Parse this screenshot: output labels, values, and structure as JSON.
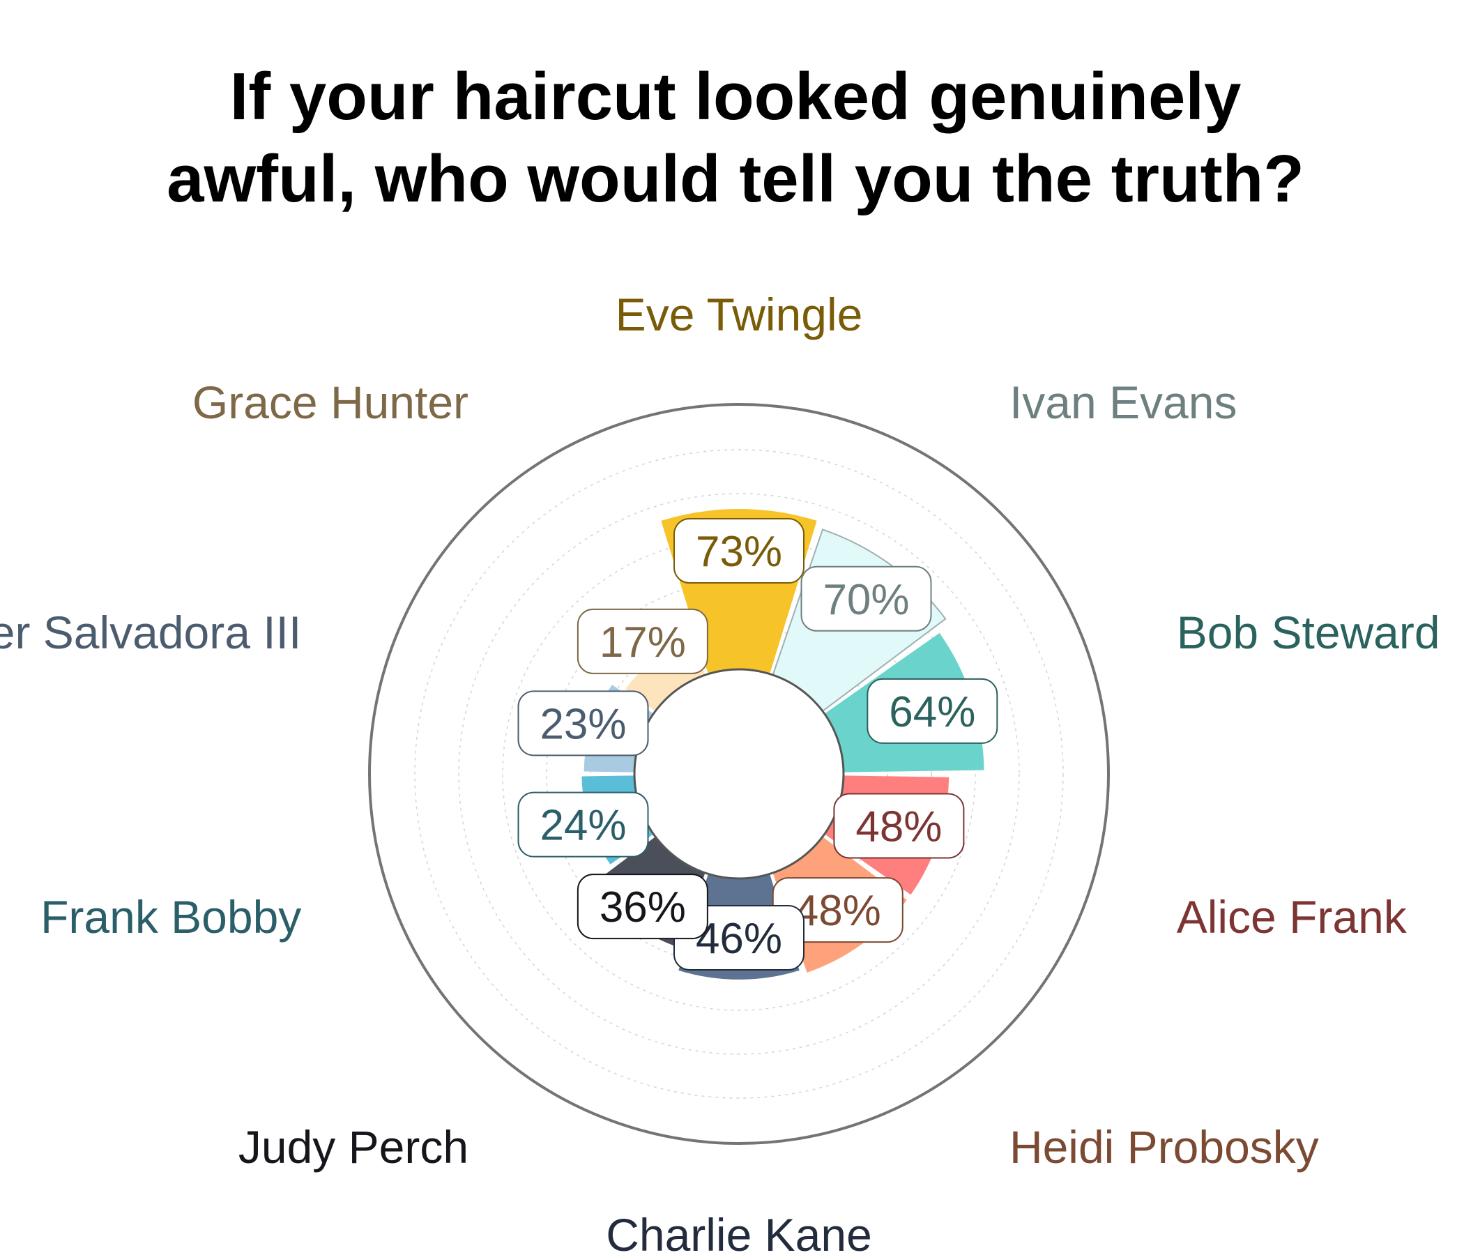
{
  "chart_data": {
    "type": "bar",
    "title": "If your haircut looked genuinely awful, who would tell you the truth?",
    "categories": [
      "Eve Twingle",
      "Ivan Evans",
      "Bob Steward",
      "Alice Frank",
      "Heidi Probosky",
      "Charlie Kane",
      "Judy Perch",
      "Frank Bobby",
      "Esther Salvadora III",
      "Grace Hunter"
    ],
    "values": [
      73,
      70,
      64,
      48,
      48,
      46,
      36,
      24,
      23,
      17
    ],
    "value_labels": [
      "73%",
      "70%",
      "64%",
      "48%",
      "48%",
      "46%",
      "36%",
      "24%",
      "23%",
      "17%"
    ],
    "unit": "%",
    "ylim": [
      0,
      100
    ],
    "grid": true,
    "bar_colors": [
      "#f6c329",
      "#e2f9fa",
      "#6ad3cb",
      "#fe7f7e",
      "#fea27c",
      "#5d7391",
      "#4b4f5a",
      "#5bbed8",
      "#a9cbe1",
      "#fde4bd"
    ],
    "label_colors": [
      "#7a5c08",
      "#6e7f7f",
      "#2a625d",
      "#7c3533",
      "#7c4a33",
      "#222c3d",
      "#15151b",
      "#2a5e69",
      "#4c5c6f",
      "#7d6847"
    ]
  }
}
